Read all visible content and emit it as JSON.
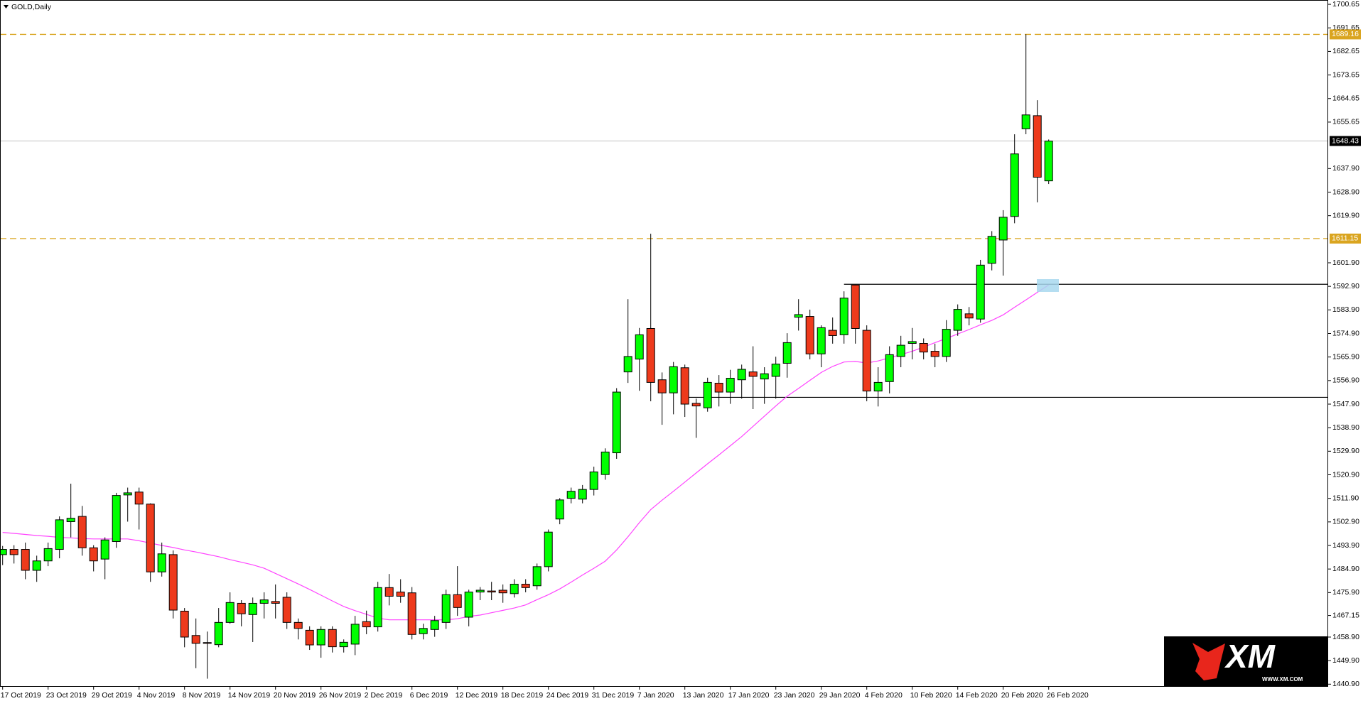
{
  "chart_data": {
    "type": "candlestick",
    "title": "GOLD,Daily",
    "categories": [
      "17 Oct 2019",
      null,
      null,
      null,
      "23 Oct 2019",
      null,
      null,
      null,
      "29 Oct 2019",
      null,
      null,
      null,
      "4 Nov 2019",
      null,
      null,
      null,
      "8 Nov 2019",
      null,
      null,
      null,
      "14 Nov 2019",
      null,
      null,
      null,
      "20 Nov 2019",
      null,
      null,
      null,
      "26 Nov 2019",
      null,
      null,
      null,
      "2 Dec 2019",
      null,
      null,
      null,
      "6 Dec 2019",
      null,
      null,
      null,
      "12 Dec 2019",
      null,
      null,
      null,
      "18 Dec 2019",
      null,
      null,
      null,
      "24 Dec 2019",
      null,
      null,
      null,
      "31 Dec 2019",
      null,
      null,
      null,
      "7 Jan 2020",
      null,
      null,
      null,
      "13 Jan 2020",
      null,
      null,
      null,
      "17 Jan 2020",
      null,
      null,
      null,
      "23 Jan 2020",
      null,
      null,
      null,
      "29 Jan 2020",
      null,
      null,
      null,
      "4 Feb 2020",
      null,
      null,
      null,
      "10 Feb 2020",
      null,
      null,
      null,
      "14 Feb 2020",
      null,
      null,
      null,
      "20 Feb 2020",
      null,
      null,
      null,
      "26 Feb 2020"
    ],
    "open": [
      1490.4,
      1492.4,
      1492.4,
      1484.4,
      1488,
      1492.4,
      1503,
      1505,
      1493,
      1488.7,
      1495.4,
      1513.2,
      1514.3,
      1509.7,
      1483.8,
      1490.4,
      1468.8,
      1459.5,
      1456.8,
      1456,
      1464.5,
      1471.8,
      1467.5,
      1471.8,
      1472.5,
      1474.1,
      1464.5,
      1461.5,
      1455.9,
      1461.8,
      1455.2,
      1456.2,
      1464.8,
      1462.8,
      1477.8,
      1476.1,
      1475.8,
      1460.2,
      1461.8,
      1464.5,
      1475.1,
      1466.5,
      1476.1,
      1476.5,
      1476.8,
      1475.5,
      1479.1,
      1478.5,
      1485.8,
      1504,
      1511.9,
      1511.6,
      1515.3,
      1521,
      1529.3,
      1560.2,
      1565.1,
      1576.8,
      1557.2,
      1552.2,
      1561.8,
      1548.2,
      1546.5,
      1555.9,
      1552.5,
      1557.2,
      1560.2,
      1557.5,
      1558.5,
      1563.5,
      1581.1,
      1581.4,
      1567.1,
      1576.1,
      1574.4,
      1593.4,
      1576.1,
      1552.9,
      1556.5,
      1566.1,
      1571.1,
      1571.1,
      1568.1,
      1566.1,
      1576.1,
      1582.4,
      1580.4,
      1601.7,
      1610.6,
      1619.6,
      1653.1,
      1658.1,
      1633.2
    ],
    "high": [
      1493.7,
      1494,
      1495,
      1490,
      1495,
      1505,
      1517.5,
      1509,
      1494,
      1497,
      1514,
      1516,
      1516,
      1510,
      1495,
      1492,
      1470,
      1466,
      1461,
      1470,
      1476,
      1473,
      1474,
      1476,
      1479,
      1476,
      1466,
      1463,
      1463,
      1463,
      1458,
      1467,
      1469,
      1480,
      1483,
      1481,
      1478,
      1464,
      1467,
      1477,
      1486,
      1477,
      1478,
      1480,
      1479,
      1481,
      1481,
      1487,
      1500,
      1512,
      1516,
      1517,
      1524,
      1531,
      1554,
      1588,
      1577,
      1613,
      1560,
      1564,
      1563,
      1550,
      1558,
      1559,
      1561,
      1563,
      1570,
      1562,
      1566,
      1575,
      1588,
      1584,
      1578,
      1581,
      1591,
      1593.5,
      1578,
      1562,
      1570,
      1574,
      1577,
      1573,
      1571,
      1580,
      1586,
      1585,
      1603,
      1614,
      1622,
      1651,
      1689.2,
      1664,
      1649
    ],
    "low": [
      1486.4,
      1487,
      1481,
      1480,
      1486,
      1489,
      1497,
      1490,
      1484,
      1481,
      1493,
      1503,
      1500,
      1480,
      1482,
      1466,
      1455,
      1447,
      1443,
      1455,
      1464,
      1463,
      1457,
      1466,
      1466,
      1462,
      1458,
      1454,
      1451,
      1453,
      1453,
      1452,
      1460,
      1461,
      1471,
      1472,
      1458,
      1458,
      1459,
      1462,
      1467,
      1463,
      1473,
      1473,
      1472,
      1474,
      1476,
      1477,
      1484,
      1502,
      1510,
      1510,
      1513,
      1519,
      1527,
      1556,
      1553,
      1549,
      1540,
      1544,
      1543,
      1535,
      1545,
      1547,
      1548,
      1550,
      1546,
      1548,
      1550,
      1558,
      1576,
      1565,
      1562,
      1571,
      1571,
      1571,
      1549,
      1547,
      1552,
      1562,
      1565,
      1565,
      1562,
      1564,
      1574,
      1578,
      1579,
      1599,
      1597,
      1617,
      1651,
      1625,
      1632
    ],
    "close": [
      1492.4,
      1490.4,
      1484.4,
      1488,
      1492.7,
      1503.7,
      1504.3,
      1493,
      1488,
      1496,
      1513,
      1514,
      1509.7,
      1483.8,
      1490.7,
      1469.2,
      1458.9,
      1456.5,
      1456.5,
      1464.5,
      1472.1,
      1467.8,
      1471.8,
      1473.1,
      1471.8,
      1464.5,
      1462.2,
      1455.9,
      1461.8,
      1455.2,
      1456.9,
      1463.8,
      1462.8,
      1477.8,
      1474.5,
      1474.5,
      1459.9,
      1462.2,
      1465.2,
      1475.1,
      1470.2,
      1476.1,
      1476.8,
      1476.1,
      1475.8,
      1479.1,
      1477.8,
      1485.8,
      1499,
      1511.3,
      1514.6,
      1515.3,
      1522,
      1529.6,
      1552.5,
      1566.1,
      1574.4,
      1556.2,
      1552.2,
      1562.2,
      1547.9,
      1547.2,
      1556.2,
      1552.5,
      1557.8,
      1561.2,
      1558.5,
      1559.5,
      1563.2,
      1571.4,
      1582.1,
      1567.1,
      1577.1,
      1574.1,
      1588.4,
      1576.8,
      1552.9,
      1556.2,
      1566.8,
      1570.4,
      1571.8,
      1567.8,
      1566.1,
      1576.5,
      1584.1,
      1580.8,
      1601,
      1612,
      1619.3,
      1643.5,
      1658.4,
      1634.6,
      1648.4
    ],
    "up_color": "#00ff00",
    "down_color": "#ee3a1c",
    "ma": {
      "color": "#ff44ff",
      "values": [
        1498.9,
        1498.5,
        1498.1,
        1497.7,
        1497.4,
        1497.0,
        1496.8,
        1496.5,
        1496.4,
        1496.4,
        1496.4,
        1496.4,
        1495.7,
        1494.8,
        1493.9,
        1493.1,
        1492.2,
        1491.4,
        1490.5,
        1489.6,
        1488.5,
        1487.5,
        1486.5,
        1485.2,
        1483.2,
        1481.2,
        1479.2,
        1477.1,
        1474.9,
        1472.7,
        1470.6,
        1469.0,
        1467.6,
        1466.1,
        1465.5,
        1465.5,
        1465.5,
        1465.5,
        1465.5,
        1465.5,
        1465.9,
        1466.8,
        1467.3,
        1468.2,
        1469.1,
        1470.0,
        1471.2,
        1473.2,
        1475.1,
        1477.3,
        1479.9,
        1482.6,
        1485.2,
        1487.9,
        1492.2,
        1497.2,
        1502.6,
        1507.6,
        1511.2,
        1514.6,
        1518.1,
        1521.6,
        1525.1,
        1528.5,
        1532.0,
        1535.5,
        1539.4,
        1543.3,
        1547.2,
        1550.9,
        1553.9,
        1557.0,
        1560.0,
        1562.3,
        1564.0,
        1564.2,
        1563.6,
        1564.4,
        1565.6,
        1566.8,
        1568.1,
        1569.7,
        1571.4,
        1573.0,
        1574.7,
        1576.4,
        1578.2,
        1579.9,
        1582.0,
        1584.9,
        1587.7,
        1590.6,
        1593.4
      ]
    },
    "ylim": [
      1439.9,
      1702.3
    ],
    "yticks": [
      1700.65,
      1691.65,
      1682.65,
      1673.65,
      1664.65,
      1655.65,
      {
        "value": 1637.9,
        "label": "1637.90"
      },
      {
        "value": 1628.9,
        "label": "1628.90"
      },
      {
        "value": 1619.9,
        "label": "1619.90"
      },
      {
        "value": 1601.9,
        "label": "1601.90"
      },
      {
        "value": 1592.9,
        "label": "1592.90"
      },
      {
        "value": 1583.9,
        "label": "1583.90"
      },
      {
        "value": 1574.9,
        "label": "1574.90"
      },
      {
        "value": 1565.9,
        "label": "1565.90"
      },
      {
        "value": 1556.9,
        "label": "1556.90"
      },
      {
        "value": 1547.9,
        "label": "1547.90"
      },
      {
        "value": 1538.9,
        "label": "1538.90"
      },
      {
        "value": 1529.9,
        "label": "1529.90"
      },
      {
        "value": 1520.9,
        "label": "1520.90"
      },
      {
        "value": 1511.9,
        "label": "1511.90"
      },
      {
        "value": 1502.9,
        "label": "1502.90"
      },
      {
        "value": 1493.9,
        "label": "1493.90"
      },
      {
        "value": 1484.9,
        "label": "1484.90"
      },
      {
        "value": 1475.9,
        "label": "1475.90"
      },
      1467.15,
      {
        "value": 1458.9,
        "label": "1458.90"
      },
      {
        "value": 1449.9,
        "label": "1449.90"
      },
      {
        "value": 1440.9,
        "label": "1440.90"
      }
    ],
    "levels": [
      {
        "value": 1689.16,
        "label": "1689.16",
        "color": "#daa520",
        "dash": true
      },
      {
        "value": 1611.15,
        "label": "1611.15",
        "color": "#daa520",
        "dash": true
      }
    ],
    "price_line": {
      "value": 1648.43,
      "label": "1648.43",
      "color": "#c0c0c0"
    },
    "trendlines": [
      {
        "value": 1593.7,
        "start": 74,
        "color": "#000000"
      },
      {
        "value": 1550.5,
        "start": 60,
        "color": "#000000"
      }
    ],
    "watermark": {
      "brand": "XM",
      "site": "WWW.XM.COM"
    }
  }
}
